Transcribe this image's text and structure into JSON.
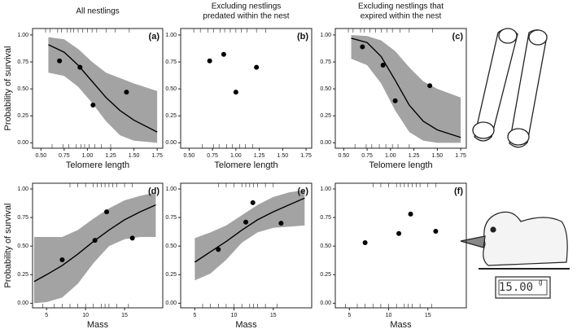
{
  "chart_data": [
    {
      "type": "scatter",
      "title": [
        "All nestlings"
      ],
      "panel_label": "(a)",
      "xlabel": "Telomere length",
      "ylabel": "Probability of survival",
      "xlim": [
        0.41,
        1.81
      ],
      "ylim": [
        -0.05,
        1.06
      ],
      "xticks": [
        {
          "value": 0.5,
          "label": "0.50"
        },
        {
          "value": 0.75,
          "label": "0.75"
        },
        {
          "value": 1,
          "label": "1.00"
        },
        {
          "value": 1.25,
          "label": "1.25"
        },
        {
          "value": 1.5,
          "label": "1.50"
        },
        {
          "value": 1.75,
          "label": "1.75"
        }
      ],
      "yticks": [
        {
          "value": 0,
          "label": "0.00"
        },
        {
          "value": 0.25,
          "label": "0.25"
        },
        {
          "value": 0.5,
          "label": "0.50"
        },
        {
          "value": 0.75,
          "label": "0.75"
        },
        {
          "value": 1,
          "label": "1.00"
        }
      ],
      "points": {
        "x": [
          0.7,
          0.92,
          1.06,
          1.42
        ],
        "values": [
          0.76,
          0.7,
          0.35,
          0.47
        ],
        "color": "#000000"
      },
      "fit": {
        "x": [
          0.58,
          0.75,
          0.9,
          1.05,
          1.2,
          1.35,
          1.5,
          1.75
        ],
        "values": [
          0.91,
          0.84,
          0.72,
          0.57,
          0.42,
          0.3,
          0.21,
          0.1
        ],
        "lower": [
          0.65,
          0.62,
          0.52,
          0.37,
          0.2,
          0.07,
          0.02,
          0
        ],
        "upper": [
          0.98,
          0.96,
          0.87,
          0.75,
          0.65,
          0.6,
          0.55,
          0.48
        ],
        "color": "#000000",
        "band_color": "#a3a3a3"
      },
      "rug_top": [
        0.55,
        0.6,
        0.68,
        0.72,
        0.78,
        0.82,
        0.85,
        0.9,
        0.95,
        1.0,
        1.05,
        1.1,
        1.2,
        1.3,
        1.45
      ],
      "rug_bottom": [
        0.62,
        0.74,
        0.8,
        0.88,
        0.93,
        0.97,
        1.02,
        1.08,
        1.15,
        1.25
      ]
    },
    {
      "type": "scatter",
      "title": [
        "Excluding nestlings",
        "predated within the nest"
      ],
      "panel_label": "(b)",
      "xlabel": "Telomere length",
      "xlim": [
        0.41,
        1.81
      ],
      "ylim": [
        -0.05,
        1.06
      ],
      "xticks": [
        {
          "value": 0.5,
          "label": "0.50"
        },
        {
          "value": 0.75,
          "label": "0.75"
        },
        {
          "value": 1,
          "label": "1.00"
        },
        {
          "value": 1.25,
          "label": "1.25"
        },
        {
          "value": 1.5,
          "label": "1.50"
        },
        {
          "value": 1.75,
          "label": "1.75"
        }
      ],
      "yticks": [
        {
          "value": 0,
          "label": "0.00"
        },
        {
          "value": 0.25,
          "label": "0.25"
        },
        {
          "value": 0.5,
          "label": "0.50"
        },
        {
          "value": 0.75,
          "label": "0.75"
        },
        {
          "value": 1,
          "label": "1.00"
        }
      ],
      "points": {
        "x": [
          0.72,
          0.87,
          1.0,
          1.22
        ],
        "values": [
          0.76,
          0.82,
          0.47,
          0.7
        ],
        "color": "#000000"
      },
      "rug_top": [
        0.55,
        0.62,
        0.7,
        0.76,
        0.83,
        0.88,
        0.94,
        1.0,
        1.06,
        1.12,
        1.22,
        1.32
      ],
      "rug_bottom": [
        0.64,
        0.76,
        0.82,
        0.9,
        0.96,
        1.04,
        1.1,
        1.18
      ]
    },
    {
      "type": "scatter",
      "title": [
        "Excluding nestlings that",
        "expired within the nest"
      ],
      "panel_label": "(c)",
      "xlabel": "Telomere length",
      "xlim": [
        0.41,
        1.81
      ],
      "ylim": [
        -0.05,
        1.06
      ],
      "xticks": [
        {
          "value": 0.5,
          "label": "0.50"
        },
        {
          "value": 0.75,
          "label": "0.75"
        },
        {
          "value": 1,
          "label": "1.00"
        },
        {
          "value": 1.25,
          "label": "1.25"
        },
        {
          "value": 1.5,
          "label": "1.50"
        },
        {
          "value": 1.75,
          "label": "1.75"
        }
      ],
      "yticks": [
        {
          "value": 0,
          "label": "0.00"
        },
        {
          "value": 0.25,
          "label": "0.25"
        },
        {
          "value": 0.5,
          "label": "0.50"
        },
        {
          "value": 0.75,
          "label": "0.75"
        },
        {
          "value": 1,
          "label": "1.00"
        }
      ],
      "points": {
        "x": [
          0.7,
          0.92,
          1.05,
          1.42
        ],
        "values": [
          0.89,
          0.72,
          0.39,
          0.53
        ],
        "color": "#000000"
      },
      "fit": {
        "x": [
          0.58,
          0.75,
          0.9,
          1.05,
          1.2,
          1.35,
          1.5,
          1.75
        ],
        "values": [
          0.97,
          0.93,
          0.8,
          0.58,
          0.35,
          0.2,
          0.12,
          0.05
        ],
        "lower": [
          0.78,
          0.72,
          0.55,
          0.3,
          0.1,
          0.02,
          0,
          0
        ],
        "upper": [
          1.0,
          0.99,
          0.95,
          0.85,
          0.7,
          0.57,
          0.5,
          0.42
        ],
        "color": "#000000",
        "band_color": "#a3a3a3"
      },
      "rug_top": [
        0.55,
        0.6,
        0.68,
        0.72,
        0.78,
        0.84,
        0.9,
        0.96,
        1.02,
        1.1,
        1.2,
        1.45
      ],
      "rug_bottom": [
        0.62,
        0.74,
        0.8,
        0.88,
        0.95,
        1.02,
        1.08,
        1.2
      ]
    },
    {
      "type": "scatter",
      "panel_label": "(d)",
      "xlabel": "Mass",
      "ylabel": "Probability of survival",
      "xlim": [
        3.2,
        19.9
      ],
      "ylim": [
        -0.04,
        1.05
      ],
      "xticks": [
        5,
        10,
        15
      ],
      "yticks": [
        {
          "value": 0,
          "label": "0.00"
        },
        {
          "value": 0.25,
          "label": "0.25"
        },
        {
          "value": 0.5,
          "label": "0.50"
        },
        {
          "value": 0.75,
          "label": "0.75"
        },
        {
          "value": 1,
          "label": "1.00"
        }
      ],
      "points": {
        "x": [
          7,
          11.2,
          12.7,
          16
        ],
        "values": [
          0.38,
          0.55,
          0.8,
          0.57
        ],
        "color": "#000000"
      },
      "fit": {
        "x": [
          3.4,
          5,
          7,
          9,
          11,
          13,
          15,
          17,
          19
        ],
        "values": [
          0.19,
          0.25,
          0.33,
          0.43,
          0.54,
          0.64,
          0.73,
          0.8,
          0.86
        ],
        "lower": [
          0,
          0.01,
          0.05,
          0.17,
          0.35,
          0.5,
          0.56,
          0.58,
          0.58
        ],
        "upper": [
          0.58,
          0.58,
          0.58,
          0.64,
          0.74,
          0.83,
          0.9,
          0.94,
          0.97
        ],
        "color": "#000000",
        "band_color": "#a3a3a3"
      },
      "rug_top": [
        8,
        9,
        10,
        11,
        11.5,
        12,
        12.5,
        13,
        13.5,
        14,
        15,
        16
      ],
      "rug_bottom": [
        4.5,
        6,
        7,
        8,
        9,
        10,
        11,
        12,
        12.5,
        13,
        14,
        15.5
      ]
    },
    {
      "type": "scatter",
      "panel_label": "(e)",
      "xlabel": "Mass",
      "xlim": [
        3.2,
        19.9
      ],
      "ylim": [
        -0.04,
        1.05
      ],
      "xticks": [
        5,
        10,
        15
      ],
      "yticks": [
        {
          "value": 0,
          "label": "0.00"
        },
        {
          "value": 0.25,
          "label": "0.25"
        },
        {
          "value": 0.5,
          "label": "0.50"
        },
        {
          "value": 0.75,
          "label": "0.75"
        },
        {
          "value": 1,
          "label": "1.00"
        }
      ],
      "points": {
        "x": [
          8,
          11.5,
          12.4,
          16
        ],
        "values": [
          0.47,
          0.71,
          0.88,
          0.7
        ],
        "color": "#000000"
      },
      "fit": {
        "x": [
          5,
          7,
          9,
          11,
          13,
          15,
          17,
          19
        ],
        "values": [
          0.36,
          0.45,
          0.54,
          0.64,
          0.73,
          0.8,
          0.86,
          0.92
        ],
        "lower": [
          0.2,
          0.26,
          0.38,
          0.53,
          0.62,
          0.66,
          0.67,
          0.68
        ],
        "upper": [
          0.57,
          0.62,
          0.68,
          0.77,
          0.86,
          0.93,
          0.97,
          0.99
        ],
        "color": "#000000",
        "band_color": "#a3a3a3"
      },
      "rug_top": [
        8,
        9,
        10,
        11,
        11.5,
        12,
        12.5,
        13,
        14,
        15
      ],
      "rug_bottom": [
        6,
        7,
        8,
        9,
        10,
        11,
        12,
        12.5,
        13,
        14,
        15.5
      ]
    },
    {
      "type": "scatter",
      "panel_label": "(f)",
      "xlabel": "Mass",
      "xlim": [
        3.2,
        19.9
      ],
      "ylim": [
        -0.04,
        1.05
      ],
      "xticks": [
        5,
        10,
        15
      ],
      "yticks": [
        {
          "value": 0,
          "label": "0.00"
        },
        {
          "value": 0.25,
          "label": "0.25"
        },
        {
          "value": 0.5,
          "label": "0.50"
        },
        {
          "value": 0.75,
          "label": "0.75"
        },
        {
          "value": 1,
          "label": "1.00"
        }
      ],
      "points": {
        "x": [
          7,
          11.3,
          12.8,
          16
        ],
        "values": [
          0.53,
          0.61,
          0.78,
          0.63
        ],
        "color": "#000000"
      },
      "rug_top": [
        8,
        9,
        10,
        11,
        11.5,
        12,
        12.5,
        13,
        13.5,
        14,
        15,
        16
      ],
      "rug_bottom": [
        4.5,
        6,
        7,
        8,
        9,
        10,
        11,
        12,
        12.5,
        13,
        14,
        15.5
      ]
    }
  ],
  "illustration": {
    "scale_display": "15.00",
    "scale_unit": "g"
  }
}
